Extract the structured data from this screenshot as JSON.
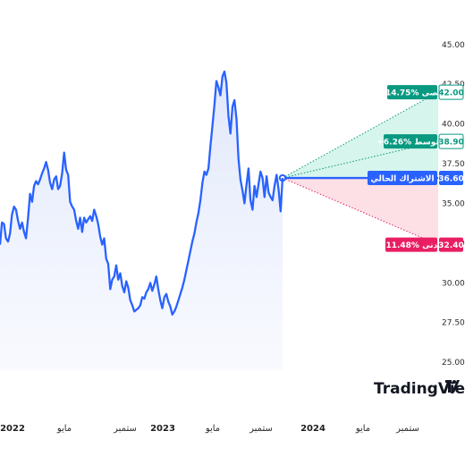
{
  "chart_data": {
    "type": "line",
    "title": "",
    "xlabel": "",
    "ylabel": "",
    "ylim": [
      24.5,
      46
    ],
    "y_ticks": [
      "45.00",
      "42.50",
      "40.00",
      "37.50",
      "35.00",
      "32.50",
      "30.00",
      "27.50",
      "25.00"
    ],
    "x_tick_labels": [
      {
        "label": "2022",
        "year": true
      },
      {
        "label": "مايو",
        "year": false
      },
      {
        "label": "ستمبر",
        "year": false
      },
      {
        "label": "2023",
        "year": true
      },
      {
        "label": "مايو",
        "year": false
      },
      {
        "label": "ستمبر",
        "year": false
      },
      {
        "label": "2024",
        "year": true
      },
      {
        "label": "مايو",
        "year": false
      },
      {
        "label": "ستمبر",
        "year": false
      }
    ],
    "series": [
      {
        "values": [
          32.4,
          33.8,
          33.7,
          32.8,
          32.6,
          33.1,
          34.3,
          34.8,
          34.6,
          33.9,
          33.4,
          33.8,
          33.2,
          32.8,
          34.1,
          35.6,
          35.1,
          36.1,
          36.4,
          36.2,
          36.5,
          36.9,
          37.2,
          37.6,
          37.1,
          36.3,
          35.9,
          36.5,
          36.7,
          35.9,
          36.1,
          36.9,
          38.2,
          37.1,
          36.8,
          35.1,
          34.8,
          34.6,
          33.9,
          33.4,
          34.1,
          33.2,
          34.1,
          33.8,
          34.0,
          34.2,
          33.9,
          34.6,
          34.2,
          33.7,
          32.9,
          32.4,
          32.8,
          31.5,
          31.2,
          29.6,
          30.2,
          30.4,
          31.1,
          30.2,
          30.6,
          29.8,
          29.4,
          30.1,
          29.7,
          28.9,
          28.6,
          28.2,
          28.3,
          28.4,
          28.6,
          29.1,
          29.0,
          29.4,
          29.6,
          30.0,
          29.5,
          29.9,
          30.4,
          29.6,
          28.9,
          28.4,
          29.1,
          29.3,
          28.8,
          28.5,
          28.0,
          28.2,
          28.5,
          28.9,
          29.3,
          29.7,
          30.2,
          30.8,
          31.4,
          32.0,
          32.6,
          33.1,
          33.8,
          34.4,
          35.2,
          36.3,
          37.0,
          36.8,
          37.2,
          38.6,
          39.9,
          41.2,
          42.7,
          42.3,
          41.8,
          43.0,
          43.3,
          42.6,
          40.5,
          39.4,
          41.1,
          41.5,
          40.3,
          37.8,
          36.5,
          35.8,
          35.0,
          36.2,
          37.2,
          35.2,
          34.6,
          36.1,
          35.4,
          36.2,
          37.0,
          36.6,
          35.4,
          36.7,
          35.7,
          35.4,
          35.2,
          36.1,
          36.8,
          35.9,
          34.5,
          36.6
        ]
      }
    ],
    "current_value": 36.6,
    "forecast": [
      {
        "key": "high",
        "tag": "+14.75% أقصى",
        "value_label": "42.00",
        "value": 42.0,
        "color": "#089981"
      },
      {
        "key": "avg",
        "tag": "+6.26% متوسط",
        "value_label": "38.90",
        "value": 38.9,
        "color": "#089981"
      },
      {
        "key": "current",
        "tag": "الاشتراك الحالي",
        "value_label": "36.60",
        "value": 36.6,
        "color": "#2962ff"
      },
      {
        "key": "low",
        "tag": "-11.48% أدنى",
        "value_label": "32.40",
        "value": 32.4,
        "color": "#e91e63"
      }
    ],
    "grid": false,
    "legend": "none"
  },
  "logo": {
    "text": "TradingView",
    "mark": "tv-logo"
  },
  "colors": {
    "line": "#2962ff",
    "area_fill": "#e8edfc",
    "high_zone": "#d6f5ec",
    "low_zone": "#fde0e6",
    "high_dots": "#089981",
    "low_dots": "#e91e63"
  }
}
